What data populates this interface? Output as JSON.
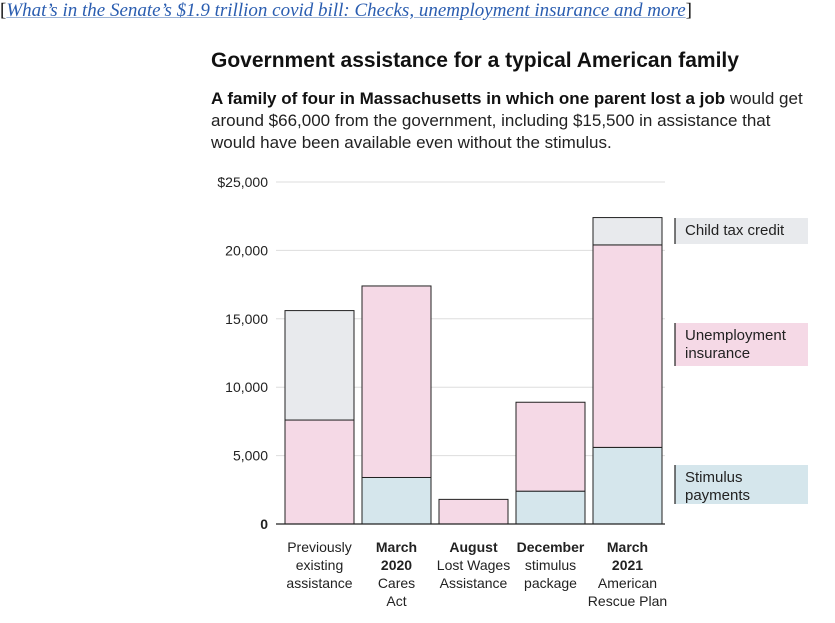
{
  "header": {
    "link_prefix": "[",
    "link_text": "What’s in the Senate’s $1.9 trillion covid bill: Checks, unemployment insurance and more",
    "link_suffix": "]"
  },
  "title": "Government assistance for a typical American family",
  "subtitle": {
    "bold": "A family of four in Massachusetts in which one parent lost a job",
    "rest": "would get around $66,000 from the government, including $15,500 in assistance that would have been available even without the stimulus."
  },
  "colors": {
    "child_tax_credit": "#e8eaed",
    "unemployment_insurance": "#f5d9e6",
    "stimulus_payments": "#d5e6ec",
    "previously_existing_top": "#e8eaed",
    "bar_outline": "#222222",
    "grid": "#dddddd"
  },
  "chart_data": {
    "type": "bar",
    "stacked": true,
    "ylim": [
      0,
      25000
    ],
    "yticks": [
      0,
      5000,
      10000,
      15000,
      20000,
      25000
    ],
    "ytick_labels": [
      "0",
      "5,000",
      "10,000",
      "15,000",
      "20,000",
      "$25,000"
    ],
    "categories": [
      {
        "bold": "",
        "lines": [
          "Previously",
          "existing",
          "assistance"
        ]
      },
      {
        "bold": "March",
        "lines": [
          "2020",
          "Cares",
          "Act"
        ]
      },
      {
        "bold": "August",
        "lines": [
          "Lost Wages",
          "Assistance"
        ]
      },
      {
        "bold": "December",
        "lines": [
          "stimulus",
          "package"
        ]
      },
      {
        "bold": "March",
        "lines": [
          "2021",
          "American",
          "Rescue Plan"
        ]
      }
    ],
    "series": [
      {
        "name": "Stimulus payments",
        "key": "stimulus_payments",
        "values": [
          0,
          3400,
          0,
          2400,
          5600
        ]
      },
      {
        "name": "Unemployment insurance",
        "key": "unemployment_insurance",
        "values": [
          7600,
          14000,
          1800,
          6500,
          14800
        ]
      },
      {
        "name": "Child tax credit",
        "key": "child_tax_credit",
        "values": [
          0,
          0,
          0,
          0,
          2000
        ]
      },
      {
        "name": "",
        "key": "previously_existing_top",
        "values": [
          8000,
          0,
          0,
          0,
          0
        ]
      }
    ],
    "legend": [
      {
        "lines": [
          "Child tax credit"
        ],
        "key": "child_tax_credit"
      },
      {
        "lines": [
          "Unemployment",
          "insurance"
        ],
        "key": "unemployment_insurance"
      },
      {
        "lines": [
          "Stimulus",
          "payments"
        ],
        "key": "stimulus_payments"
      }
    ],
    "legend_placement": "right",
    "grid": true
  }
}
